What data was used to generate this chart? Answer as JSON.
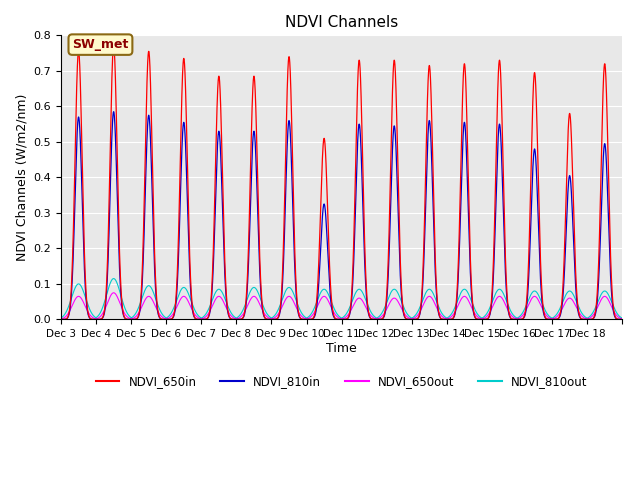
{
  "title": "NDVI Channels",
  "ylabel": "NDVI Channels (W/m2/nm)",
  "xlabel": "Time",
  "annotation": "SW_met",
  "ylim": [
    0.0,
    0.8
  ],
  "yticks": [
    0.0,
    0.1,
    0.2,
    0.3,
    0.4,
    0.5,
    0.6,
    0.7,
    0.8
  ],
  "background_color": "#e8e8e8",
  "line_colors": {
    "NDVI_650in": "#ff0000",
    "NDVI_810in": "#0000cc",
    "NDVI_650out": "#ff00ff",
    "NDVI_810out": "#00cccc"
  },
  "tick_positions": [
    0,
    1,
    2,
    3,
    4,
    5,
    6,
    7,
    8,
    9,
    10,
    11,
    12,
    13,
    14,
    15,
    16
  ],
  "tick_labels": [
    "Dec 3",
    "Dec 4",
    "Dec 5",
    "Dec 6",
    "Dec 7",
    "Dec 8",
    "Dec 9",
    "Dec 10",
    "Dec 11",
    "Dec 12",
    "Dec 13",
    "Dec 14",
    "Dec 15",
    "Dec 16",
    "Dec 17",
    "Dec 18",
    ""
  ],
  "peak_650in": [
    0.755,
    0.77,
    0.755,
    0.735,
    0.685,
    0.685,
    0.74,
    0.51,
    0.73,
    0.73,
    0.715,
    0.72,
    0.73,
    0.695,
    0.58,
    0.72
  ],
  "peak_810in": [
    0.57,
    0.585,
    0.575,
    0.555,
    0.53,
    0.53,
    0.56,
    0.325,
    0.55,
    0.545,
    0.56,
    0.555,
    0.55,
    0.48,
    0.405,
    0.495
  ],
  "peak_650out": [
    0.065,
    0.075,
    0.065,
    0.065,
    0.065,
    0.065,
    0.065,
    0.065,
    0.06,
    0.06,
    0.065,
    0.065,
    0.065,
    0.065,
    0.06,
    0.065
  ],
  "peak_810out": [
    0.1,
    0.115,
    0.095,
    0.09,
    0.085,
    0.09,
    0.09,
    0.085,
    0.085,
    0.085,
    0.085,
    0.085,
    0.085,
    0.08,
    0.08,
    0.08
  ],
  "num_days": 16,
  "points_per_day": 300
}
